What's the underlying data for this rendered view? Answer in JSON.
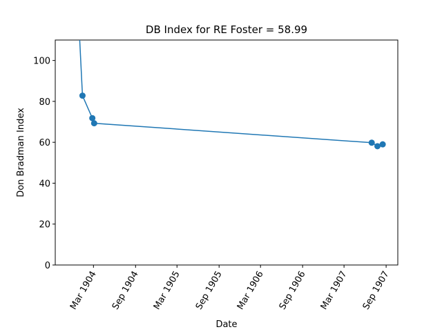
{
  "chart_data": {
    "type": "line",
    "title": "DB Index for RE Foster = 58.99",
    "xlabel": "Date",
    "ylabel": "Don Bradman Index",
    "color": "#1f77b4",
    "x": [
      "1903-12-23",
      "1904-01-13",
      "1904-02-25",
      "1904-03-04",
      "1907-06-30",
      "1907-07-25",
      "1907-08-17"
    ],
    "values": [
      130,
      82.8,
      71.8,
      69.3,
      59.8,
      58.1,
      58.99
    ],
    "xlim": [
      "1903-09-16",
      "1907-10-22"
    ],
    "xticks": [
      {
        "value": "1904-03-01",
        "label": "Mar 1904"
      },
      {
        "value": "1904-09-01",
        "label": "Sep 1904"
      },
      {
        "value": "1905-03-01",
        "label": "Mar 1905"
      },
      {
        "value": "1905-09-01",
        "label": "Sep 1905"
      },
      {
        "value": "1906-03-01",
        "label": "Mar 1906"
      },
      {
        "value": "1906-09-01",
        "label": "Sep 1906"
      },
      {
        "value": "1907-03-01",
        "label": "Mar 1907"
      },
      {
        "value": "1907-09-01",
        "label": "Sep 1907"
      }
    ],
    "ylim": [
      0,
      110
    ],
    "yticks": [
      0,
      20,
      40,
      60,
      80,
      100
    ]
  }
}
